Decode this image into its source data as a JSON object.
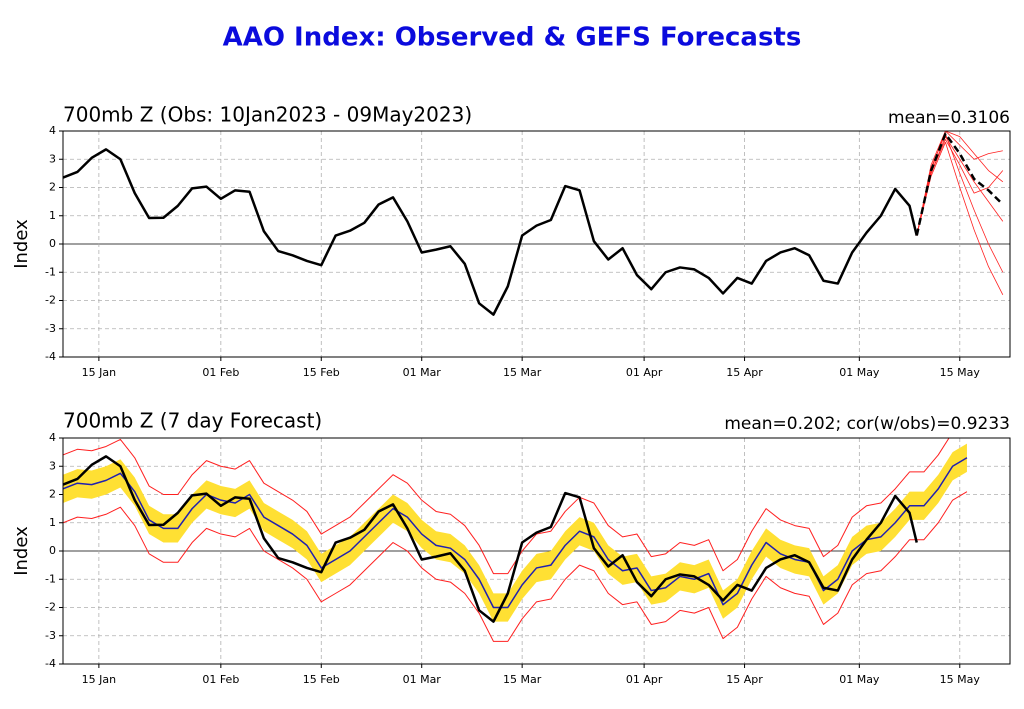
{
  "title": "AAO Index: Observed & GEFS Forecasts",
  "chart_data": [
    {
      "type": "line",
      "title": "700mb Z (Obs: 10Jan2023 - 09May2023)",
      "annotation": "mean=0.3106",
      "ylabel": "Index",
      "xlim": [
        "01-10",
        "05-22"
      ],
      "ylim": [
        -4,
        4
      ],
      "yticks": [
        -4,
        -3,
        -2,
        -1,
        0,
        1,
        2,
        3,
        4
      ],
      "grid": true,
      "xticks": [
        {
          "value": "01-15",
          "label": "15 Jan"
        },
        {
          "value": "02-01",
          "label": "01 Feb"
        },
        {
          "value": "02-15",
          "label": "15 Feb"
        },
        {
          "value": "03-01",
          "label": "01 Mar"
        },
        {
          "value": "03-15",
          "label": "15 Mar"
        },
        {
          "value": "04-01",
          "label": "01 Apr"
        },
        {
          "value": "04-15",
          "label": "15 Apr"
        },
        {
          "value": "05-01",
          "label": "01 May"
        },
        {
          "value": "05-15",
          "label": "15 May"
        }
      ],
      "members": [
        {
          "color": "#ff2020",
          "x": [
            "05-09",
            "05-11",
            "05-13",
            "05-15",
            "05-17",
            "05-19",
            "05-21"
          ],
          "values": [
            0.3,
            2.8,
            4.0,
            3.5,
            3.0,
            3.2,
            3.3
          ]
        },
        {
          "color": "#ff2020",
          "x": [
            "05-09",
            "05-11",
            "05-13",
            "05-15",
            "05-17",
            "05-19",
            "05-21"
          ],
          "values": [
            0.3,
            2.5,
            3.8,
            3.0,
            2.2,
            1.5,
            0.8
          ]
        },
        {
          "color": "#ff2020",
          "x": [
            "05-09",
            "05-11",
            "05-13",
            "05-15",
            "05-17",
            "05-19",
            "05-21"
          ],
          "values": [
            0.3,
            2.7,
            3.9,
            2.5,
            1.2,
            0.0,
            -1.0
          ]
        },
        {
          "color": "#ff2020",
          "x": [
            "05-09",
            "05-11",
            "05-13",
            "05-15",
            "05-17",
            "05-19",
            "05-21"
          ],
          "values": [
            0.3,
            2.4,
            3.6,
            2.0,
            0.5,
            -0.8,
            -1.8
          ]
        },
        {
          "color": "#ff2020",
          "x": [
            "05-09",
            "05-11",
            "05-13",
            "05-15",
            "05-17",
            "05-19",
            "05-21"
          ],
          "values": [
            0.3,
            2.6,
            4.0,
            3.8,
            3.2,
            2.6,
            2.2
          ]
        },
        {
          "color": "#ff2020",
          "x": [
            "05-09",
            "05-11",
            "05-13",
            "05-15",
            "05-17",
            "05-19",
            "05-21"
          ],
          "values": [
            0.3,
            2.5,
            3.7,
            2.8,
            1.8,
            2.0,
            2.6
          ]
        }
      ],
      "series": [
        {
          "color": "#000000",
          "width": 2.5,
          "x": [
            "01-10",
            "01-12",
            "01-14",
            "01-16",
            "01-18",
            "01-20",
            "01-22",
            "01-24",
            "01-26",
            "01-28",
            "01-30",
            "02-01",
            "02-03",
            "02-05",
            "02-07",
            "02-09",
            "02-11",
            "02-13",
            "02-15",
            "02-17",
            "02-19",
            "02-21",
            "02-23",
            "02-25",
            "02-27",
            "03-01",
            "03-03",
            "03-05",
            "03-07",
            "03-09",
            "03-11",
            "03-13",
            "03-15",
            "03-17",
            "03-19",
            "03-21",
            "03-23",
            "03-25",
            "03-27",
            "03-29",
            "03-31",
            "04-02",
            "04-04",
            "04-06",
            "04-08",
            "04-10",
            "04-12",
            "04-14",
            "04-16",
            "04-18",
            "04-20",
            "04-22",
            "04-24",
            "04-26",
            "04-28",
            "04-30",
            "05-02",
            "05-04",
            "05-06",
            "05-08",
            "05-09"
          ],
          "values": [
            2.35,
            2.55,
            3.05,
            3.35,
            3.0,
            1.8,
            0.92,
            0.93,
            1.35,
            1.97,
            2.03,
            1.6,
            1.9,
            1.85,
            0.45,
            -0.25,
            -0.4,
            -0.6,
            -0.75,
            0.3,
            0.47,
            0.75,
            1.4,
            1.65,
            0.8,
            -0.3,
            -0.2,
            -0.08,
            -0.7,
            -2.1,
            -2.5,
            -1.5,
            0.3,
            0.65,
            0.85,
            2.05,
            1.9,
            0.1,
            -0.55,
            -0.15,
            -1.1,
            -1.6,
            -1.0,
            -0.83,
            -0.9,
            -1.2,
            -1.75,
            -1.2,
            -1.4,
            -0.6,
            -0.3,
            -0.15,
            -0.4,
            -1.3,
            -1.4,
            -0.3,
            0.4,
            1.0,
            1.95,
            1.35,
            0.3
          ]
        },
        {
          "color": "#000000",
          "width": 2.5,
          "dash": true,
          "x": [
            "05-09",
            "05-11",
            "05-13",
            "05-15",
            "05-17",
            "05-19",
            "05-21"
          ],
          "values": [
            0.3,
            2.6,
            3.9,
            3.2,
            2.3,
            1.9,
            1.4
          ]
        }
      ]
    },
    {
      "type": "line",
      "title": "700mb Z (7 day Forecast)",
      "annotation": "mean=0.202; cor(w/obs)=0.9233",
      "ylabel": "Index",
      "xlim": [
        "01-10",
        "05-22"
      ],
      "ylim": [
        -4,
        4
      ],
      "yticks": [
        -4,
        -3,
        -2,
        -1,
        0,
        1,
        2,
        3,
        4
      ],
      "grid": true,
      "xticks": [
        {
          "value": "01-15",
          "label": "15 Jan"
        },
        {
          "value": "02-01",
          "label": "01 Feb"
        },
        {
          "value": "02-15",
          "label": "15 Feb"
        },
        {
          "value": "03-01",
          "label": "01 Mar"
        },
        {
          "value": "03-15",
          "label": "15 Mar"
        },
        {
          "value": "04-01",
          "label": "01 Apr"
        },
        {
          "value": "04-15",
          "label": "15 Apr"
        },
        {
          "value": "05-01",
          "label": "01 May"
        },
        {
          "value": "05-15",
          "label": "15 May"
        }
      ],
      "x": [
        "01-10",
        "01-12",
        "01-14",
        "01-16",
        "01-18",
        "01-20",
        "01-22",
        "01-24",
        "01-26",
        "01-28",
        "01-30",
        "02-01",
        "02-03",
        "02-05",
        "02-07",
        "02-09",
        "02-11",
        "02-13",
        "02-15",
        "02-17",
        "02-19",
        "02-21",
        "02-23",
        "02-25",
        "02-27",
        "03-01",
        "03-03",
        "03-05",
        "03-07",
        "03-09",
        "03-11",
        "03-13",
        "03-15",
        "03-17",
        "03-19",
        "03-21",
        "03-23",
        "03-25",
        "03-27",
        "03-29",
        "03-31",
        "04-02",
        "04-04",
        "04-06",
        "04-08",
        "04-10",
        "04-12",
        "04-14",
        "04-16",
        "04-18",
        "04-20",
        "04-22",
        "04-24",
        "04-26",
        "04-28",
        "04-30",
        "05-02",
        "05-04",
        "05-06",
        "05-08",
        "05-10",
        "05-12",
        "05-14",
        "05-16"
      ],
      "band": {
        "color": "#ffe033",
        "lower": [
          1.7,
          1.9,
          1.85,
          2.0,
          2.25,
          1.6,
          0.6,
          0.3,
          0.3,
          1.0,
          1.5,
          1.3,
          1.2,
          1.5,
          0.7,
          0.4,
          0.1,
          -0.3,
          -1.1,
          -0.8,
          -0.5,
          0.0,
          0.5,
          1.0,
          0.7,
          0.1,
          -0.3,
          -0.4,
          -0.8,
          -1.5,
          -2.5,
          -2.5,
          -1.7,
          -1.1,
          -1.0,
          -0.3,
          0.2,
          0.0,
          -0.8,
          -1.2,
          -1.1,
          -1.9,
          -1.8,
          -1.4,
          -1.5,
          -1.3,
          -2.4,
          -2.0,
          -1.0,
          -0.2,
          -0.6,
          -0.8,
          -0.9,
          -1.9,
          -1.5,
          -0.5,
          -0.1,
          0.0,
          0.5,
          1.1,
          1.1,
          1.7,
          2.5,
          2.8
        ],
        "upper": [
          2.7,
          2.9,
          2.85,
          3.0,
          3.25,
          2.6,
          1.6,
          1.3,
          1.3,
          2.0,
          2.5,
          2.3,
          2.2,
          2.5,
          1.7,
          1.4,
          1.1,
          0.7,
          -0.1,
          0.2,
          0.5,
          1.0,
          1.5,
          2.0,
          1.7,
          1.1,
          0.7,
          0.6,
          0.2,
          -0.5,
          -1.5,
          -1.5,
          -0.7,
          -0.1,
          0.0,
          0.7,
          1.2,
          1.0,
          0.2,
          -0.2,
          -0.1,
          -0.9,
          -0.8,
          -0.4,
          -0.5,
          -0.3,
          -1.4,
          -1.0,
          0.0,
          0.8,
          0.4,
          0.2,
          0.1,
          -0.9,
          -0.5,
          0.5,
          0.9,
          1.0,
          1.5,
          2.1,
          2.1,
          2.7,
          3.5,
          3.8
        ]
      },
      "series": [
        {
          "color": "#ff2020",
          "width": 1,
          "values": [
            1.0,
            1.2,
            1.15,
            1.3,
            1.55,
            0.9,
            -0.1,
            -0.4,
            -0.4,
            0.3,
            0.8,
            0.6,
            0.5,
            0.8,
            0.0,
            -0.3,
            -0.6,
            -1.0,
            -1.8,
            -1.5,
            -1.2,
            -0.7,
            -0.2,
            0.3,
            0.0,
            -0.6,
            -1.0,
            -1.1,
            -1.5,
            -2.2,
            -3.2,
            -3.2,
            -2.4,
            -1.8,
            -1.7,
            -1.0,
            -0.5,
            -0.7,
            -1.5,
            -1.9,
            -1.8,
            -2.6,
            -2.5,
            -2.1,
            -2.2,
            -2.0,
            -3.1,
            -2.7,
            -1.7,
            -0.9,
            -1.3,
            -1.5,
            -1.6,
            -2.6,
            -2.2,
            -1.2,
            -0.8,
            -0.7,
            -0.2,
            0.4,
            0.4,
            1.0,
            1.8,
            2.1
          ]
        },
        {
          "color": "#ff2020",
          "width": 1,
          "values": [
            3.4,
            3.6,
            3.55,
            3.7,
            3.95,
            3.3,
            2.3,
            2.0,
            2.0,
            2.7,
            3.2,
            3.0,
            2.9,
            3.2,
            2.4,
            2.1,
            1.8,
            1.4,
            0.6,
            0.9,
            1.2,
            1.7,
            2.2,
            2.7,
            2.4,
            1.8,
            1.4,
            1.3,
            0.9,
            0.2,
            -0.8,
            -0.8,
            0.0,
            0.6,
            0.7,
            1.4,
            1.9,
            1.7,
            0.9,
            0.5,
            0.6,
            -0.2,
            -0.1,
            0.3,
            0.2,
            0.4,
            -0.7,
            -0.3,
            0.7,
            1.5,
            1.1,
            0.9,
            0.8,
            -0.2,
            0.2,
            1.2,
            1.6,
            1.7,
            2.2,
            2.8,
            2.8,
            3.4,
            4.2,
            4.5
          ]
        },
        {
          "color": "#2020b0",
          "width": 1.5,
          "values": [
            2.2,
            2.4,
            2.35,
            2.5,
            2.75,
            2.1,
            1.1,
            0.8,
            0.8,
            1.5,
            2.0,
            1.8,
            1.7,
            2.0,
            1.2,
            0.9,
            0.6,
            0.2,
            -0.6,
            -0.3,
            0.0,
            0.5,
            1.0,
            1.5,
            1.2,
            0.6,
            0.2,
            0.1,
            -0.3,
            -1.0,
            -2.0,
            -2.0,
            -1.2,
            -0.6,
            -0.5,
            0.2,
            0.7,
            0.5,
            -0.3,
            -0.7,
            -0.6,
            -1.4,
            -1.3,
            -0.9,
            -1.0,
            -0.8,
            -1.9,
            -1.5,
            -0.5,
            0.3,
            -0.1,
            -0.3,
            -0.4,
            -1.4,
            -1.0,
            0.0,
            0.4,
            0.5,
            1.0,
            1.6,
            1.6,
            2.2,
            3.0,
            3.3
          ]
        },
        {
          "color": "#000000",
          "width": 2.5,
          "x": [
            "01-10",
            "01-12",
            "01-14",
            "01-16",
            "01-18",
            "01-20",
            "01-22",
            "01-24",
            "01-26",
            "01-28",
            "01-30",
            "02-01",
            "02-03",
            "02-05",
            "02-07",
            "02-09",
            "02-11",
            "02-13",
            "02-15",
            "02-17",
            "02-19",
            "02-21",
            "02-23",
            "02-25",
            "02-27",
            "03-01",
            "03-03",
            "03-05",
            "03-07",
            "03-09",
            "03-11",
            "03-13",
            "03-15",
            "03-17",
            "03-19",
            "03-21",
            "03-23",
            "03-25",
            "03-27",
            "03-29",
            "03-31",
            "04-02",
            "04-04",
            "04-06",
            "04-08",
            "04-10",
            "04-12",
            "04-14",
            "04-16",
            "04-18",
            "04-20",
            "04-22",
            "04-24",
            "04-26",
            "04-28",
            "04-30",
            "05-02",
            "05-04",
            "05-06",
            "05-08",
            "05-09"
          ],
          "values": [
            2.35,
            2.55,
            3.05,
            3.35,
            3.0,
            1.8,
            0.92,
            0.93,
            1.35,
            1.97,
            2.03,
            1.6,
            1.9,
            1.85,
            0.45,
            -0.25,
            -0.4,
            -0.6,
            -0.75,
            0.3,
            0.47,
            0.75,
            1.4,
            1.65,
            0.8,
            -0.3,
            -0.2,
            -0.08,
            -0.7,
            -2.1,
            -2.5,
            -1.5,
            0.3,
            0.65,
            0.85,
            2.05,
            1.9,
            0.1,
            -0.55,
            -0.15,
            -1.1,
            -1.6,
            -1.0,
            -0.83,
            -0.9,
            -1.2,
            -1.75,
            -1.2,
            -1.4,
            -0.6,
            -0.3,
            -0.15,
            -0.4,
            -1.3,
            -1.4,
            -0.3,
            0.4,
            1.0,
            1.95,
            1.35,
            0.3
          ]
        }
      ]
    }
  ]
}
